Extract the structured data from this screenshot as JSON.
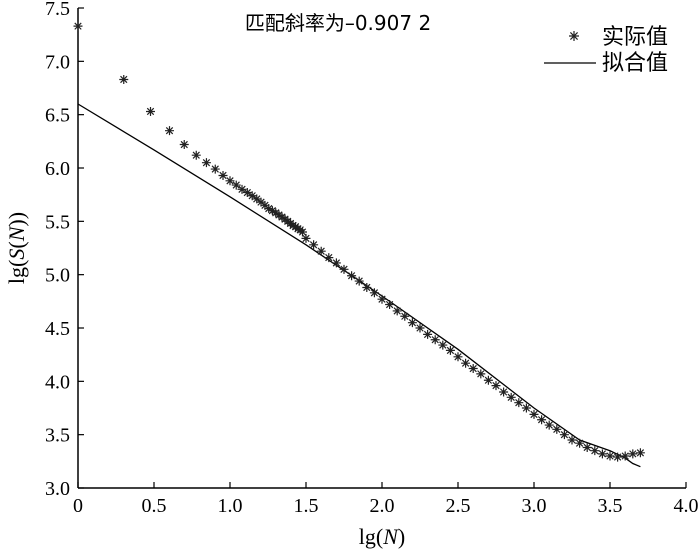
{
  "chart_data": {
    "type": "scatter",
    "title": "匹配斜率为–0.907 2",
    "xlabel": "lg(N)",
    "ylabel": "lg(S(N))",
    "xlim": [
      0,
      4.0
    ],
    "ylim": [
      3.0,
      7.5
    ],
    "xticks": [
      "0",
      "0.5",
      "1.0",
      "1.5",
      "2.0",
      "2.5",
      "3.0",
      "3.5",
      "4.0"
    ],
    "yticks": [
      "3.0",
      "3.5",
      "4.0",
      "4.5",
      "5.0",
      "5.5",
      "6.0",
      "6.5",
      "7.0",
      "7.5"
    ],
    "legend_position": "top-right",
    "series": [
      {
        "name": "实际值",
        "marker": "asterisk",
        "x": [
          0.0,
          0.301,
          0.477,
          0.602,
          0.699,
          0.778,
          0.845,
          0.903,
          0.954,
          1.0,
          1.041,
          1.079,
          1.114,
          1.146,
          1.176,
          1.204,
          1.23,
          1.255,
          1.279,
          1.301,
          1.322,
          1.342,
          1.362,
          1.38,
          1.398,
          1.415,
          1.431,
          1.447,
          1.462,
          1.477,
          1.5,
          1.55,
          1.6,
          1.65,
          1.7,
          1.75,
          1.8,
          1.85,
          1.9,
          1.95,
          2.0,
          2.05,
          2.1,
          2.15,
          2.2,
          2.25,
          2.3,
          2.35,
          2.4,
          2.45,
          2.5,
          2.55,
          2.6,
          2.65,
          2.7,
          2.75,
          2.8,
          2.85,
          2.9,
          2.95,
          3.0,
          3.05,
          3.1,
          3.15,
          3.2,
          3.25,
          3.3,
          3.35,
          3.4,
          3.45,
          3.5,
          3.55,
          3.6,
          3.65,
          3.7
        ],
        "y": [
          7.33,
          6.83,
          6.53,
          6.35,
          6.22,
          6.12,
          6.05,
          5.99,
          5.93,
          5.88,
          5.84,
          5.8,
          5.77,
          5.74,
          5.71,
          5.68,
          5.65,
          5.62,
          5.6,
          5.58,
          5.56,
          5.54,
          5.52,
          5.5,
          5.48,
          5.46,
          5.45,
          5.43,
          5.42,
          5.4,
          5.34,
          5.28,
          5.22,
          5.16,
          5.11,
          5.05,
          4.99,
          4.94,
          4.88,
          4.83,
          4.77,
          4.72,
          4.66,
          4.61,
          4.55,
          4.5,
          4.44,
          4.39,
          4.34,
          4.29,
          4.23,
          4.17,
          4.12,
          4.07,
          4.01,
          3.96,
          3.9,
          3.85,
          3.8,
          3.75,
          3.69,
          3.64,
          3.59,
          3.55,
          3.5,
          3.45,
          3.42,
          3.38,
          3.35,
          3.32,
          3.3,
          3.29,
          3.3,
          3.32,
          3.33
        ]
      },
      {
        "name": "拟合值",
        "marker": "line",
        "x": [
          0.0,
          0.5,
          1.0,
          1.5,
          2.0,
          2.5,
          3.0,
          3.3,
          3.5,
          3.6,
          3.65,
          3.7
        ],
        "y": [
          6.6,
          6.17,
          5.73,
          5.28,
          4.8,
          4.3,
          3.75,
          3.45,
          3.35,
          3.28,
          3.23,
          3.2
        ]
      }
    ]
  }
}
